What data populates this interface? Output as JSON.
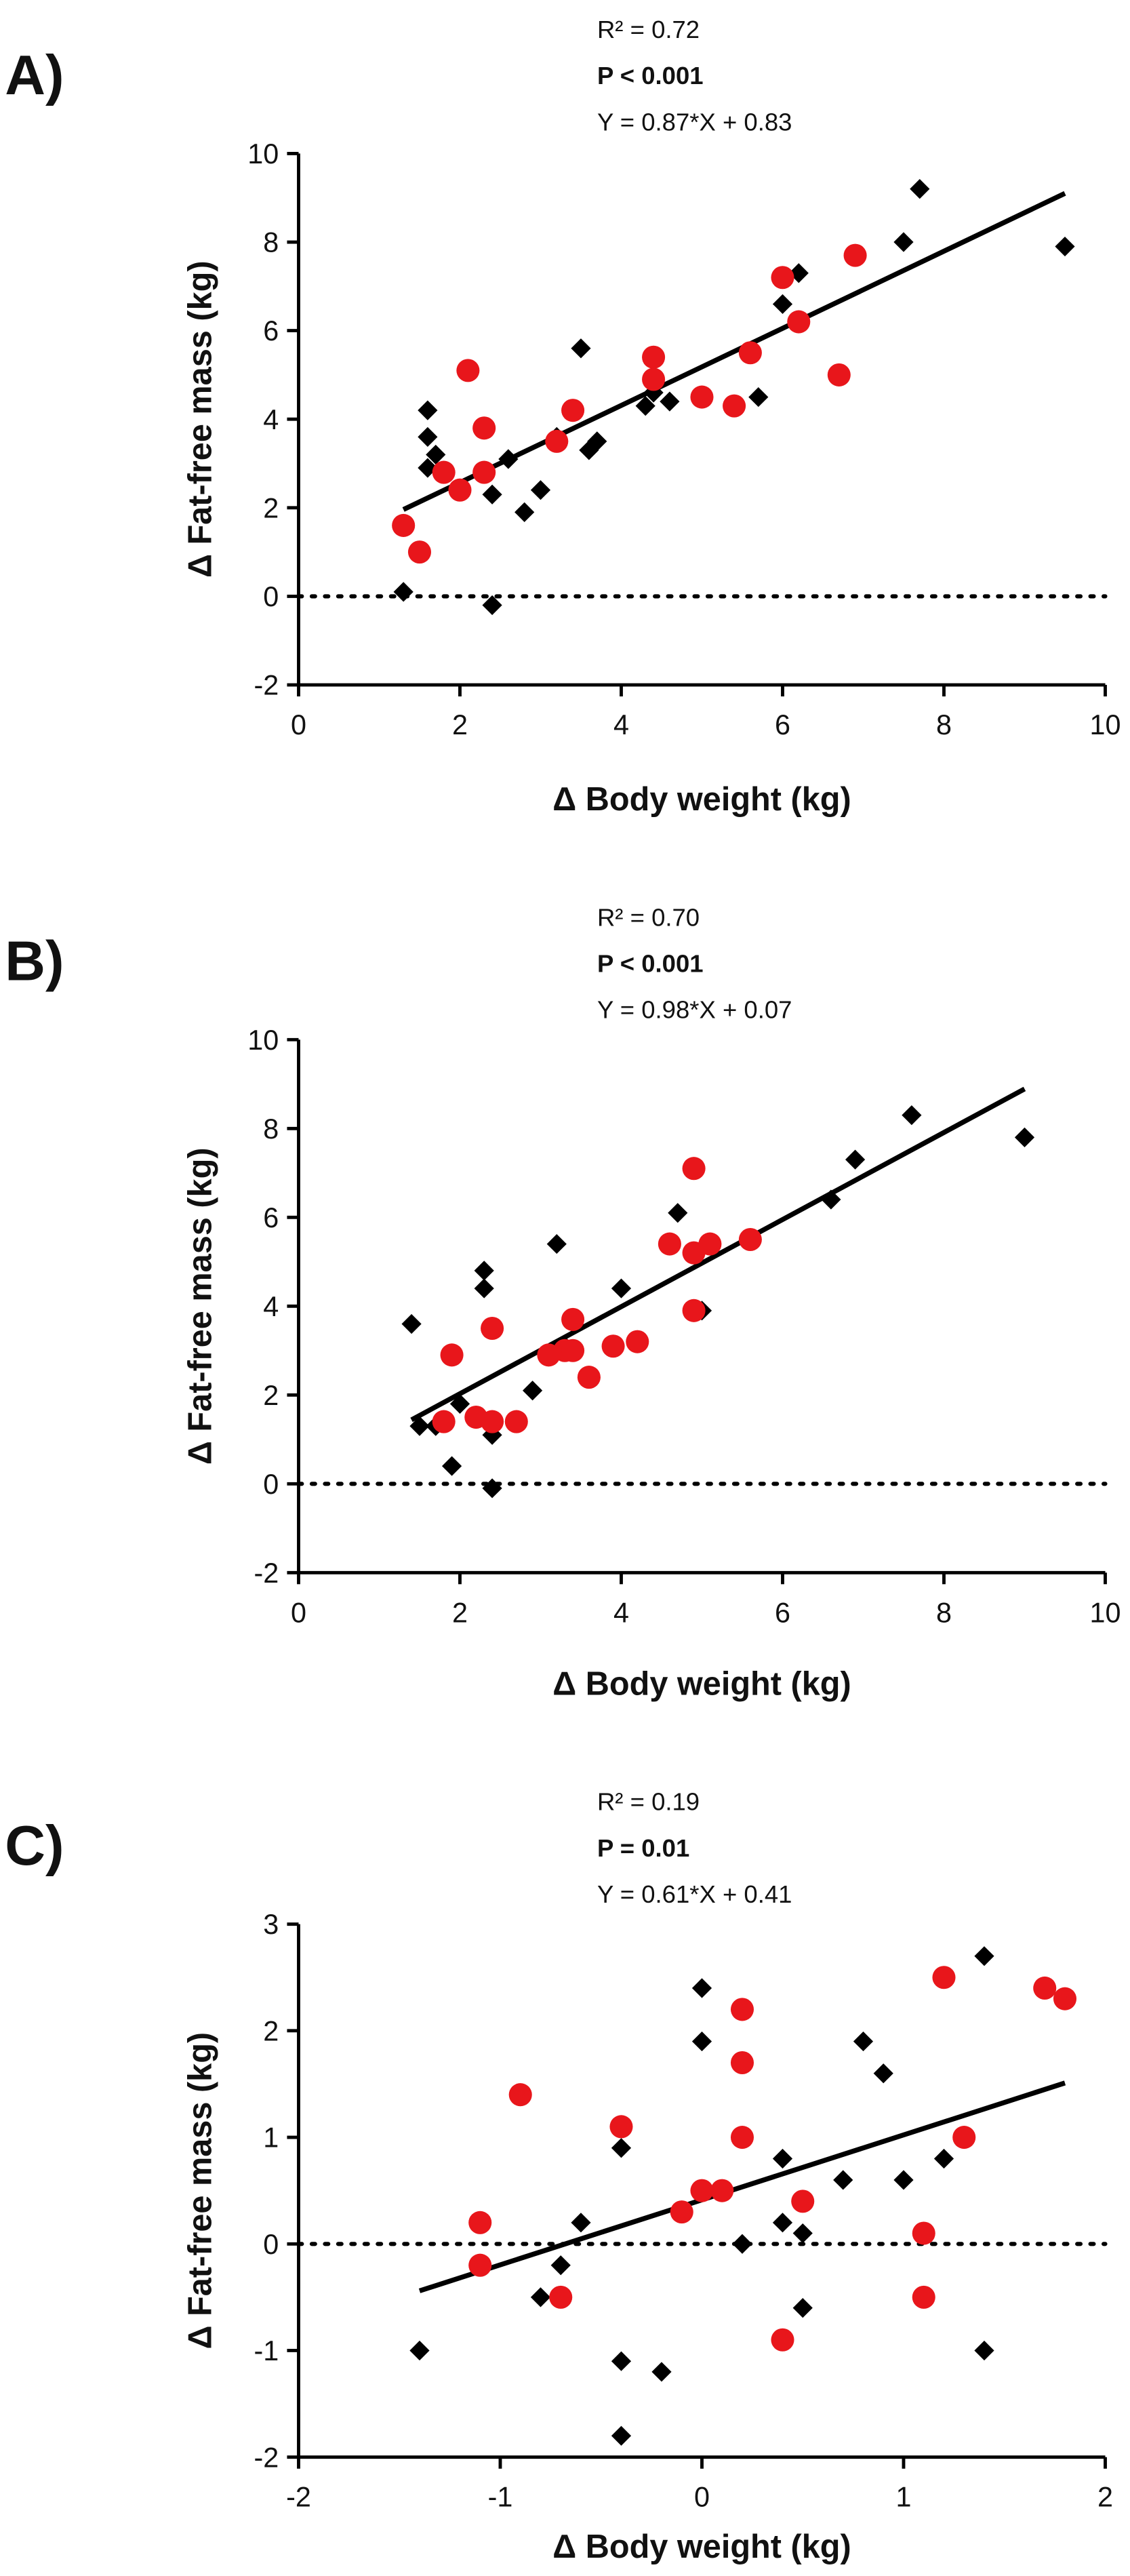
{
  "chart_data": [
    {
      "type": "scatter",
      "label": "A)",
      "annotations": [
        {
          "text": "R² = 0.72",
          "bold": false
        },
        {
          "text": "P < 0.001",
          "bold": true
        },
        {
          "text": "Y = 0.87*X + 0.83",
          "bold": false
        }
      ],
      "xlabel": "Δ Body weight (kg)",
      "ylabel": "Δ Fat-free mass (kg)",
      "xlim": [
        0,
        10
      ],
      "ylim": [
        -2,
        10
      ],
      "xticks": [
        0,
        2,
        4,
        6,
        8,
        10
      ],
      "yticks": [
        -2,
        0,
        2,
        4,
        6,
        8,
        10
      ],
      "hline": 0,
      "fit_line": {
        "color": "#000000",
        "x": [
          1.3,
          9.5
        ],
        "values": [
          1.96,
          9.1
        ]
      },
      "series": [
        {
          "color": "#000000",
          "marker": "diamond",
          "x": [
            1.3,
            1.6,
            1.6,
            1.7,
            1.6,
            2.4,
            2.4,
            2.6,
            2.8,
            3.0,
            3.2,
            3.5,
            3.6,
            3.7,
            4.3,
            4.4,
            4.6,
            5.7,
            6.0,
            6.2,
            7.5,
            7.7,
            9.5
          ],
          "values": [
            0.1,
            4.2,
            3.6,
            3.2,
            2.9,
            2.3,
            -0.2,
            3.1,
            1.9,
            2.4,
            3.6,
            5.6,
            3.3,
            3.5,
            4.3,
            4.6,
            4.4,
            4.5,
            6.6,
            7.3,
            8.0,
            9.2,
            7.9
          ]
        },
        {
          "color": "#e8161b",
          "marker": "circle",
          "x": [
            1.3,
            1.5,
            1.8,
            2.0,
            2.1,
            2.3,
            2.3,
            3.2,
            3.4,
            4.4,
            4.4,
            5.0,
            5.4,
            5.6,
            6.0,
            6.2,
            6.7,
            6.9
          ],
          "values": [
            1.6,
            1.0,
            2.8,
            2.4,
            5.1,
            3.8,
            2.8,
            3.5,
            4.2,
            5.4,
            4.9,
            4.5,
            4.3,
            5.5,
            7.2,
            6.2,
            5.0,
            7.7
          ]
        }
      ]
    },
    {
      "type": "scatter",
      "label": "B)",
      "annotations": [
        {
          "text": "R² = 0.70",
          "bold": false
        },
        {
          "text": "P < 0.001",
          "bold": true
        },
        {
          "text": "Y = 0.98*X + 0.07",
          "bold": false
        }
      ],
      "xlabel": "Δ Body weight (kg)",
      "ylabel": "Δ Fat-free mass (kg)",
      "xlim": [
        0,
        10
      ],
      "ylim": [
        -2,
        10
      ],
      "xticks": [
        0,
        2,
        4,
        6,
        8,
        10
      ],
      "yticks": [
        -2,
        0,
        2,
        4,
        6,
        8,
        10
      ],
      "hline": 0,
      "fit_line": {
        "color": "#000000",
        "x": [
          1.4,
          9.0
        ],
        "values": [
          1.44,
          8.89
        ]
      },
      "series": [
        {
          "color": "#000000",
          "marker": "diamond",
          "x": [
            1.4,
            1.5,
            1.7,
            2.0,
            1.9,
            2.3,
            2.3,
            2.4,
            2.4,
            2.9,
            3.2,
            3.3,
            4.0,
            4.7,
            5.0,
            6.6,
            6.9,
            7.6,
            9.0
          ],
          "values": [
            3.6,
            1.3,
            1.3,
            1.8,
            0.4,
            4.8,
            4.4,
            1.1,
            -0.1,
            2.1,
            5.4,
            3.1,
            4.4,
            6.1,
            3.9,
            6.4,
            7.3,
            8.3,
            7.8
          ]
        },
        {
          "color": "#e8161b",
          "marker": "circle",
          "x": [
            1.8,
            1.9,
            2.2,
            2.4,
            2.4,
            2.7,
            3.1,
            3.3,
            3.4,
            3.4,
            3.6,
            3.9,
            4.2,
            4.6,
            4.9,
            4.9,
            4.9,
            5.1,
            5.6
          ],
          "values": [
            1.4,
            2.9,
            1.5,
            1.4,
            3.5,
            1.4,
            2.9,
            3.0,
            3.7,
            3.0,
            2.4,
            3.1,
            3.2,
            5.4,
            7.1,
            5.2,
            3.9,
            5.4,
            5.5
          ]
        }
      ]
    },
    {
      "type": "scatter",
      "label": "C)",
      "annotations": [
        {
          "text": "R² = 0.19",
          "bold": false
        },
        {
          "text": "P = 0.01",
          "bold": true
        },
        {
          "text": "Y = 0.61*X + 0.41",
          "bold": false
        }
      ],
      "xlabel": "Δ Body weight (kg)",
      "ylabel": "Δ Fat-free mass (kg)",
      "xlim": [
        -2,
        2
      ],
      "ylim": [
        -2,
        3
      ],
      "xticks": [
        -2,
        -1,
        0,
        1,
        2
      ],
      "yticks": [
        -2,
        -1,
        0,
        1,
        2,
        3
      ],
      "hline": 0,
      "fit_line": {
        "color": "#000000",
        "x": [
          -1.4,
          1.8
        ],
        "values": [
          -0.44,
          1.51
        ]
      },
      "series": [
        {
          "color": "#000000",
          "marker": "diamond",
          "x": [
            -1.4,
            -0.8,
            -0.7,
            -0.6,
            -0.4,
            -0.4,
            -0.4,
            -0.2,
            0,
            0,
            0.2,
            0.4,
            0.4,
            0.5,
            0.5,
            0.7,
            0.8,
            0.9,
            1.0,
            1.2,
            1.4,
            1.4
          ],
          "values": [
            -1.0,
            -0.5,
            -0.2,
            0.2,
            0.9,
            -1.1,
            -1.8,
            -1.2,
            2.4,
            1.9,
            0.0,
            0.8,
            0.2,
            0.1,
            -0.6,
            0.6,
            1.9,
            1.6,
            0.6,
            0.8,
            2.7,
            -1.0
          ]
        },
        {
          "color": "#e8161b",
          "marker": "circle",
          "x": [
            -1.1,
            -1.1,
            -0.9,
            -0.7,
            -0.4,
            -0.1,
            0,
            0.1,
            0.2,
            0.2,
            0.2,
            0.4,
            0.5,
            1.1,
            1.1,
            1.2,
            1.3,
            1.7,
            1.8
          ],
          "values": [
            0.2,
            -0.2,
            1.4,
            -0.5,
            1.1,
            0.3,
            0.5,
            0.5,
            2.2,
            1.7,
            1.0,
            -0.9,
            0.4,
            0.1,
            -0.5,
            2.5,
            1.0,
            2.4,
            2.3
          ]
        }
      ]
    }
  ]
}
